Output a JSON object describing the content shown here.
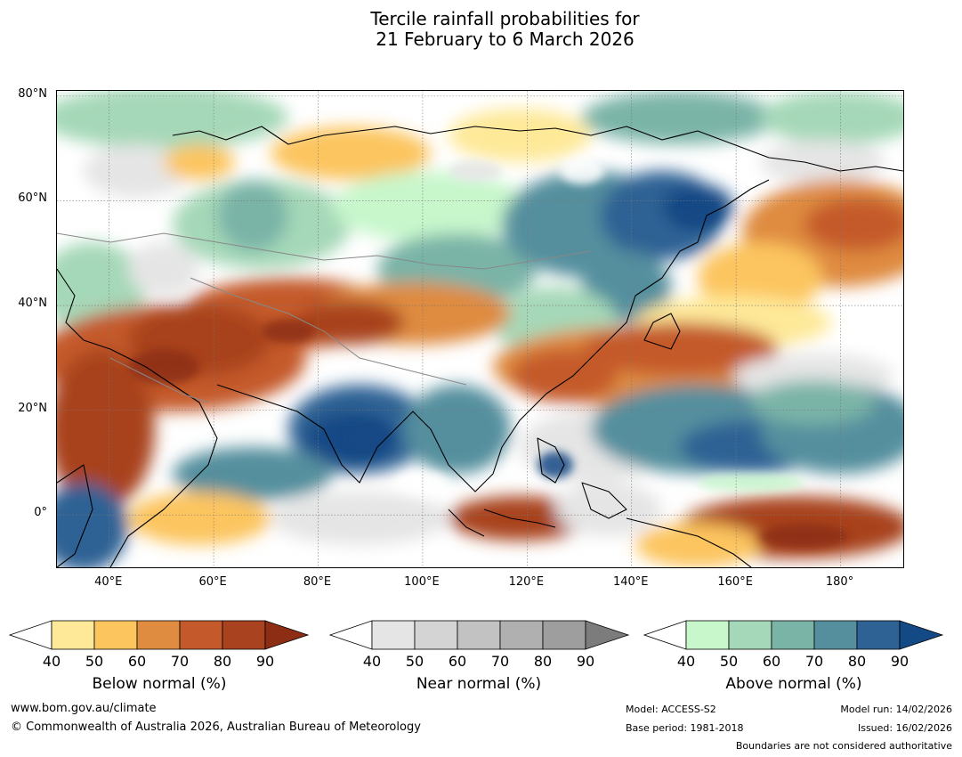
{
  "title_line1": "Tercile rainfall probabilities for",
  "title_line2": "21 February to 6 March 2026",
  "map": {
    "lon_range": [
      30,
      192
    ],
    "lat_range": [
      -10,
      81
    ],
    "lat_ticks": [
      {
        "lat": 80,
        "label": "80°N"
      },
      {
        "lat": 60,
        "label": "60°N"
      },
      {
        "lat": 40,
        "label": "40°N"
      },
      {
        "lat": 20,
        "label": "20°N"
      },
      {
        "lat": 0,
        "label": "0°"
      }
    ],
    "lon_ticks": [
      {
        "lon": 40,
        "label": "40°E"
      },
      {
        "lon": 60,
        "label": "60°E"
      },
      {
        "lon": 80,
        "label": "80°E"
      },
      {
        "lon": 100,
        "label": "100°E"
      },
      {
        "lon": 120,
        "label": "120°E"
      },
      {
        "lon": 140,
        "label": "140°E"
      },
      {
        "lon": 160,
        "label": "160°E"
      },
      {
        "lon": 180,
        "label": "180°"
      }
    ]
  },
  "colorbars": [
    {
      "label": "Below normal (%)",
      "ticks": [
        "40",
        "50",
        "60",
        "70",
        "80",
        "90"
      ],
      "colors": [
        "#ffffff",
        "#fee999",
        "#fcc55e",
        "#df8b40",
        "#c45a2c",
        "#a8421f",
        "#8c2d14"
      ]
    },
    {
      "label": "Near normal (%)",
      "ticks": [
        "40",
        "50",
        "60",
        "70",
        "80",
        "90"
      ],
      "colors": [
        "#ffffff",
        "#e5e5e5",
        "#d4d4d4",
        "#c2c2c2",
        "#b0b0b0",
        "#9e9e9e",
        "#7c7c7c"
      ]
    },
    {
      "label": "Above normal (%)",
      "ticks": [
        "40",
        "50",
        "60",
        "70",
        "80",
        "90"
      ],
      "colors": [
        "#ffffff",
        "#c8f7cc",
        "#a5d8b8",
        "#7ab4a7",
        "#558f9e",
        "#2f6294",
        "#134a85"
      ]
    }
  ],
  "footer": {
    "website": "www.bom.gov.au/climate",
    "copyright": "© Commonwealth of Australia 2026, Australian Bureau of Meteorology",
    "model": "Model: ACCESS-S2",
    "base_period": "Base period: 1981-2018",
    "model_run": "Model run: 14/02/2026",
    "issued": "Issued: 16/02/2026",
    "disclaimer": "Boundaries are not considered authoritative"
  }
}
